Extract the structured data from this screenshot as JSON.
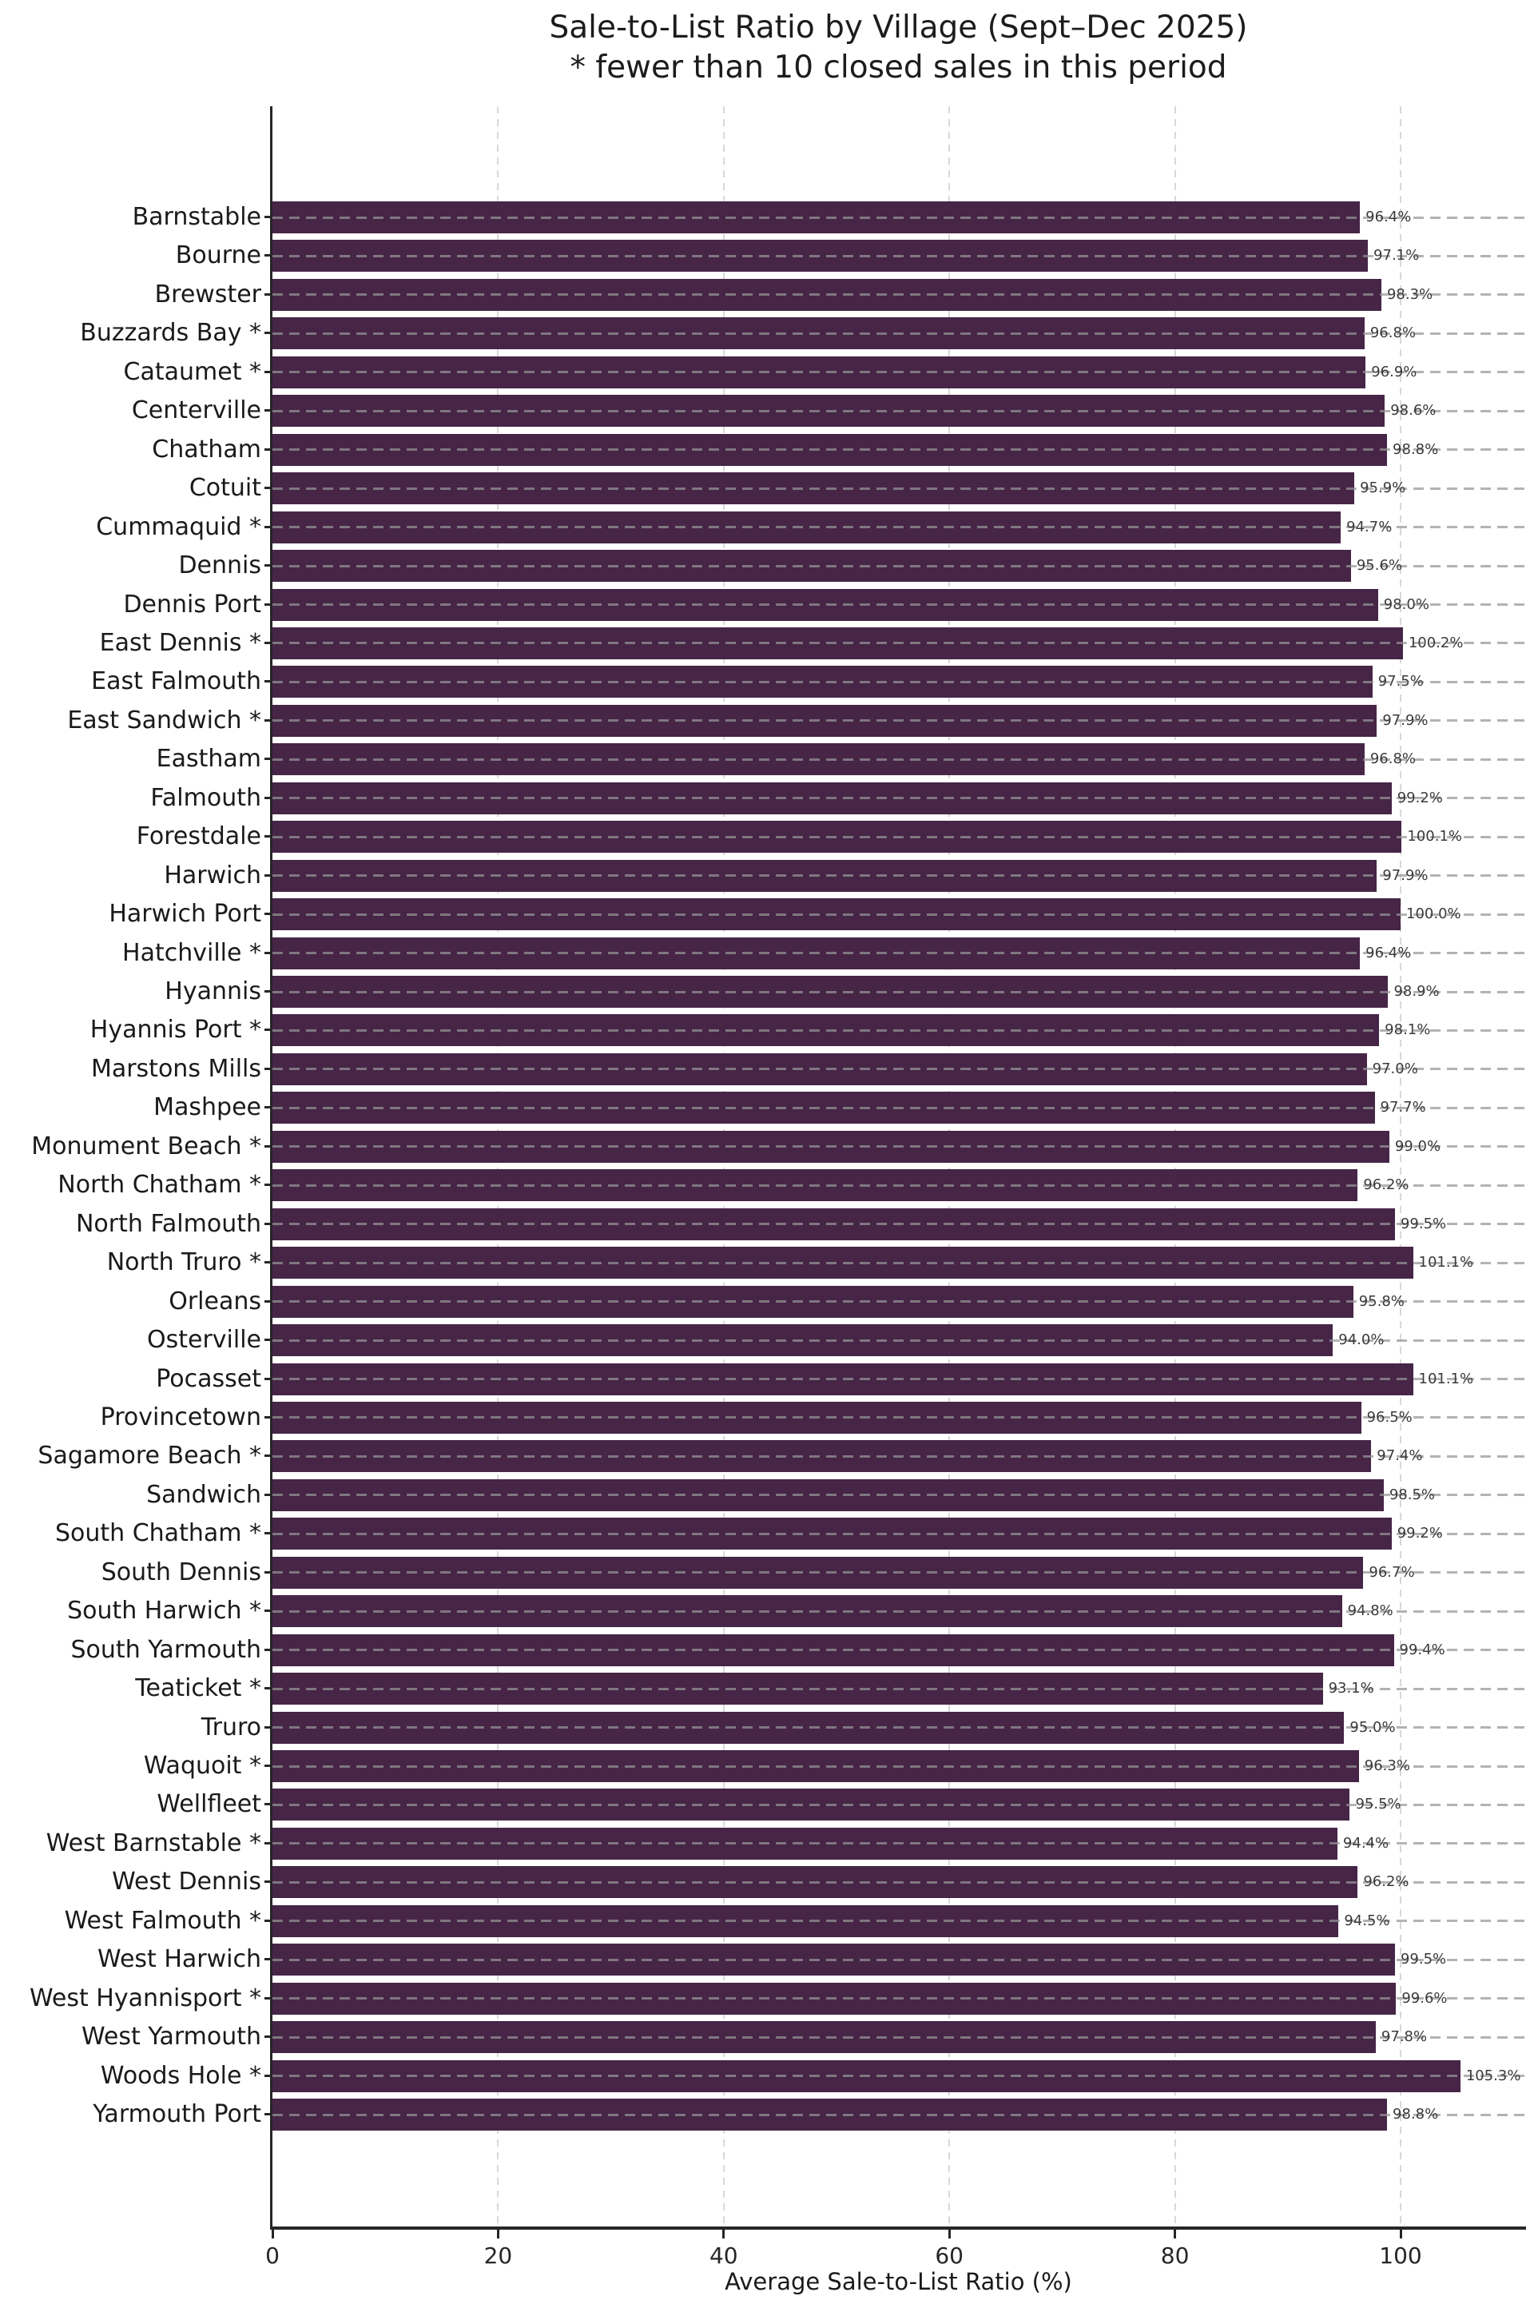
{
  "title": {
    "line1": "Sale-to-List Ratio by Village (Sept–Dec 2025)",
    "line2": "* fewer than 10 closed sales in this period"
  },
  "x_axis": {
    "label": "Average Sale-to-List Ratio (%)",
    "ticks": [
      0,
      20,
      40,
      60,
      80,
      100
    ],
    "tick_labels": [
      "0",
      "20",
      "40",
      "60",
      "80",
      "100"
    ]
  },
  "chart_data": {
    "type": "bar",
    "orientation": "horizontal",
    "title": "Sale-to-List Ratio by Village (Sept–Dec 2025)",
    "subtitle": "* fewer than 10 closed sales in this period",
    "xlabel": "Average Sale-to-List Ratio (%)",
    "ylabel": "",
    "xlim": [
      0,
      111
    ],
    "grid": "both-dashed",
    "bar_color": "#462547",
    "value_suffix": "%",
    "footnote_marker_meaning": "fewer than 10 closed sales in this period",
    "categories": [
      "Barnstable",
      "Bourne",
      "Brewster",
      "Buzzards Bay *",
      "Cataumet *",
      "Centerville",
      "Chatham",
      "Cotuit",
      "Cummaquid *",
      "Dennis",
      "Dennis Port",
      "East Dennis *",
      "East Falmouth",
      "East Sandwich *",
      "Eastham",
      "Falmouth",
      "Forestdale",
      "Harwich",
      "Harwich Port",
      "Hatchville *",
      "Hyannis",
      "Hyannis Port *",
      "Marstons Mills",
      "Mashpee",
      "Monument Beach *",
      "North Chatham *",
      "North Falmouth",
      "North Truro *",
      "Orleans",
      "Osterville",
      "Pocasset",
      "Provincetown",
      "Sagamore Beach *",
      "Sandwich",
      "South Chatham *",
      "South Dennis",
      "South Harwich *",
      "South Yarmouth",
      "Teaticket *",
      "Truro",
      "Waquoit *",
      "Wellfleet",
      "West Barnstable *",
      "West Dennis",
      "West Falmouth *",
      "West Harwich",
      "West Hyannisport *",
      "West Yarmouth",
      "Woods Hole *",
      "Yarmouth Port"
    ],
    "values": [
      96.4,
      97.1,
      98.3,
      96.8,
      96.9,
      98.6,
      98.8,
      95.9,
      94.7,
      95.6,
      98.0,
      100.2,
      97.5,
      97.9,
      96.8,
      99.2,
      100.1,
      97.9,
      100.0,
      96.4,
      98.9,
      98.1,
      97.0,
      97.7,
      99.0,
      96.2,
      99.5,
      101.1,
      95.8,
      94.0,
      101.1,
      96.5,
      97.4,
      98.5,
      99.2,
      96.7,
      94.8,
      99.4,
      93.1,
      95.0,
      96.3,
      95.5,
      94.4,
      96.2,
      94.5,
      99.5,
      99.6,
      97.8,
      105.3,
      98.8
    ]
  }
}
